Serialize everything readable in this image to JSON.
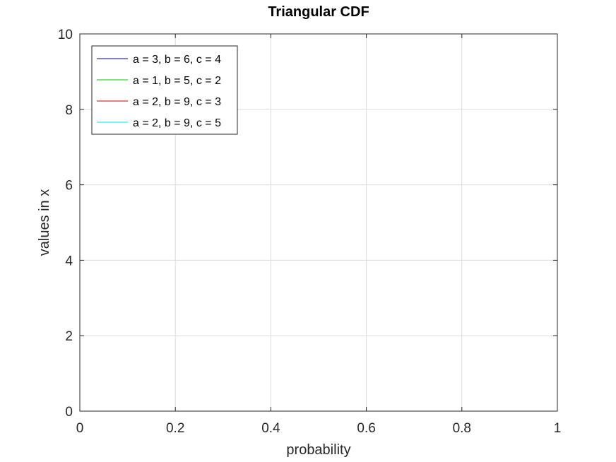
{
  "chart_data": {
    "type": "line",
    "title": "Triangular CDF",
    "xlabel": "probability",
    "ylabel": "values in x",
    "xlim": [
      0,
      1
    ],
    "ylim": [
      0,
      10
    ],
    "x_ticks": [
      "0",
      "0.2",
      "0.4",
      "0.6",
      "0.8",
      "1"
    ],
    "y_ticks": [
      "0",
      "2",
      "4",
      "6",
      "8",
      "10"
    ],
    "grid": true,
    "legend_location": "top-left",
    "series": [
      {
        "name": "a = 3, b = 6, c = 4",
        "color": "#00008b",
        "x": [],
        "y": []
      },
      {
        "name": "a = 1, b = 5, c = 2",
        "color": "#00cd00",
        "x": [],
        "y": []
      },
      {
        "name": "a = 2, b = 9, c = 3",
        "color": "#cd0000",
        "x": [],
        "y": []
      },
      {
        "name": "a = 2, b = 9, c = 5",
        "color": "#00e5ee",
        "x": [],
        "y": []
      }
    ]
  }
}
